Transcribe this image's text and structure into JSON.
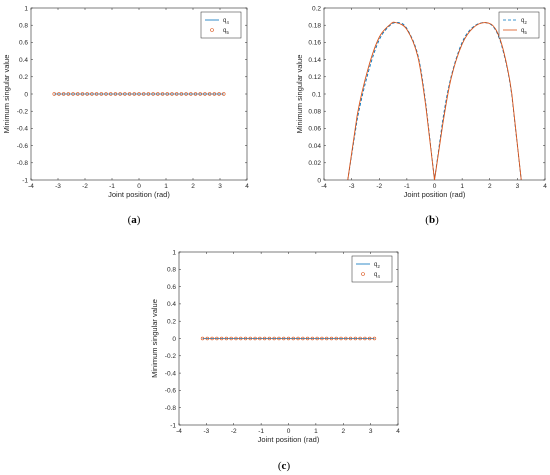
{
  "panels": [
    {
      "label_prefix": "(",
      "label_letter": "a",
      "label_suffix": ")"
    },
    {
      "label_prefix": "(",
      "label_letter": "b",
      "label_suffix": ")"
    },
    {
      "label_prefix": "(",
      "label_letter": "c",
      "label_suffix": ")"
    }
  ],
  "colors": {
    "blue": "#0072bd",
    "orange": "#d95319",
    "axis": "#262626"
  },
  "chart_data": [
    {
      "type": "line",
      "xlabel": "Joint position (rad)",
      "ylabel": "Minimum singular value",
      "xlim": [
        -4,
        4
      ],
      "ylim": [
        -1,
        1
      ],
      "xticks": [
        "-4",
        "-3",
        "-2",
        "-1",
        "0",
        "1",
        "2",
        "3",
        "4"
      ],
      "yticks": [
        "-1",
        "-0.8",
        "-0.6",
        "-0.4",
        "-0.2",
        "0",
        "0.2",
        "0.4",
        "0.6",
        "0.8",
        "1"
      ],
      "legend_position": "top-right",
      "series": [
        {
          "name": "q",
          "sub": "4",
          "style": "line",
          "x_range": [
            -3.14,
            3.14
          ],
          "value": 0
        },
        {
          "name": "q",
          "sub": "5",
          "style": "circle-markers",
          "x_range": [
            -3.14,
            3.14
          ],
          "value": 0,
          "markers": 37
        }
      ]
    },
    {
      "type": "line",
      "xlabel": "Joint position (rad)",
      "ylabel": "Minimum singular value",
      "xlim": [
        -4,
        4
      ],
      "ylim": [
        0,
        0.2
      ],
      "xticks": [
        "-4",
        "-3",
        "-2",
        "-1",
        "0",
        "1",
        "2",
        "3",
        "4"
      ],
      "yticks": [
        "0",
        "0.02",
        "0.04",
        "0.06",
        "0.08",
        "0.1",
        "0.12",
        "0.14",
        "0.16",
        "0.18",
        "0.2"
      ],
      "legend_position": "top-right",
      "series": [
        {
          "name": "q",
          "sub": "2",
          "style": "dashed",
          "x": [
            -3.14,
            -2.8,
            -2.4,
            -2.0,
            -1.6,
            -1.3,
            -1.0,
            -0.6,
            -0.3,
            0,
            0.3,
            0.6,
            1.0,
            1.4,
            1.85,
            2.2,
            2.5,
            2.8,
            3.14
          ],
          "y": [
            0,
            0.07,
            0.125,
            0.163,
            0.18,
            0.183,
            0.176,
            0.145,
            0.085,
            0,
            0.07,
            0.12,
            0.16,
            0.178,
            0.183,
            0.175,
            0.148,
            0.098,
            0
          ]
        },
        {
          "name": "q",
          "sub": "5",
          "style": "solid",
          "x": [
            -3.14,
            -2.8,
            -2.4,
            -2.0,
            -1.6,
            -1.4,
            -1.0,
            -0.6,
            -0.3,
            0,
            0.3,
            0.6,
            1.0,
            1.4,
            1.85,
            2.2,
            2.5,
            2.8,
            3.14
          ],
          "y": [
            0,
            0.075,
            0.13,
            0.166,
            0.181,
            0.183,
            0.175,
            0.143,
            0.082,
            0,
            0.065,
            0.118,
            0.158,
            0.177,
            0.183,
            0.176,
            0.15,
            0.1,
            0
          ]
        }
      ]
    },
    {
      "type": "line",
      "xlabel": "Joint position (rad)",
      "ylabel": "Minimum singular value",
      "xlim": [
        -4,
        4
      ],
      "ylim": [
        -1,
        1
      ],
      "xticks": [
        "-4",
        "-3",
        "-2",
        "-1",
        "0",
        "1",
        "2",
        "3",
        "4"
      ],
      "yticks": [
        "-1",
        "-0.8",
        "-0.6",
        "-0.4",
        "-0.2",
        "0",
        "0.2",
        "0.4",
        "0.6",
        "0.8",
        "1"
      ],
      "legend_position": "top-right",
      "series": [
        {
          "name": "q",
          "sub": "2",
          "style": "line",
          "x_range": [
            -3.14,
            3.14
          ],
          "value": 0
        },
        {
          "name": "q",
          "sub": "4",
          "style": "circle-markers",
          "x_range": [
            -3.14,
            3.14
          ],
          "value": 0,
          "markers": 37
        }
      ]
    }
  ]
}
